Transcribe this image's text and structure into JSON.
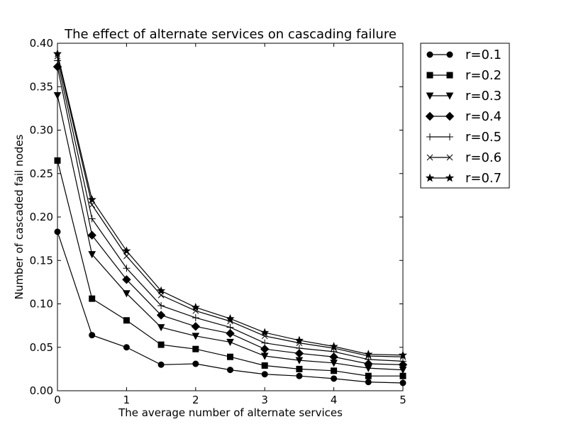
{
  "chart_data": {
    "type": "line",
    "title": "The effect of alternate services on cascading failure",
    "xlabel": "The average number of alternate services",
    "ylabel": "Number of cascaded fail nodes",
    "xlim": [
      0,
      5
    ],
    "ylim": [
      0,
      0.4
    ],
    "x_ticks": [
      "0",
      "1",
      "2",
      "3",
      "4",
      "5"
    ],
    "y_ticks": [
      "0.00",
      "0.05",
      "0.10",
      "0.15",
      "0.20",
      "0.25",
      "0.30",
      "0.35",
      "0.40"
    ],
    "grid": false,
    "legend_position": "outside-right-top",
    "x": [
      0,
      0.5,
      1,
      1.5,
      2,
      2.5,
      3,
      3.5,
      4,
      4.5,
      5
    ],
    "series": [
      {
        "name": "r=0.1",
        "marker": "circle",
        "values": [
          0.183,
          0.064,
          0.05,
          0.03,
          0.031,
          0.024,
          0.019,
          0.017,
          0.014,
          0.01,
          0.009
        ]
      },
      {
        "name": "r=0.2",
        "marker": "square",
        "values": [
          0.265,
          0.106,
          0.081,
          0.053,
          0.048,
          0.039,
          0.029,
          0.025,
          0.023,
          0.017,
          0.017
        ]
      },
      {
        "name": "r=0.3",
        "marker": "triangle-down",
        "values": [
          0.34,
          0.157,
          0.112,
          0.073,
          0.063,
          0.056,
          0.04,
          0.035,
          0.032,
          0.026,
          0.024
        ]
      },
      {
        "name": "r=0.4",
        "marker": "diamond",
        "values": [
          0.373,
          0.179,
          0.128,
          0.087,
          0.074,
          0.066,
          0.048,
          0.043,
          0.039,
          0.031,
          0.03
        ]
      },
      {
        "name": "r=0.5",
        "marker": "plus",
        "values": [
          0.38,
          0.198,
          0.141,
          0.098,
          0.084,
          0.073,
          0.055,
          0.049,
          0.045,
          0.036,
          0.034
        ]
      },
      {
        "name": "r=0.6",
        "marker": "x",
        "values": [
          0.385,
          0.214,
          0.155,
          0.11,
          0.092,
          0.08,
          0.063,
          0.055,
          0.049,
          0.04,
          0.039
        ]
      },
      {
        "name": "r=0.7",
        "marker": "star",
        "values": [
          0.388,
          0.22,
          0.161,
          0.115,
          0.096,
          0.083,
          0.067,
          0.058,
          0.051,
          0.042,
          0.041
        ]
      }
    ]
  }
}
